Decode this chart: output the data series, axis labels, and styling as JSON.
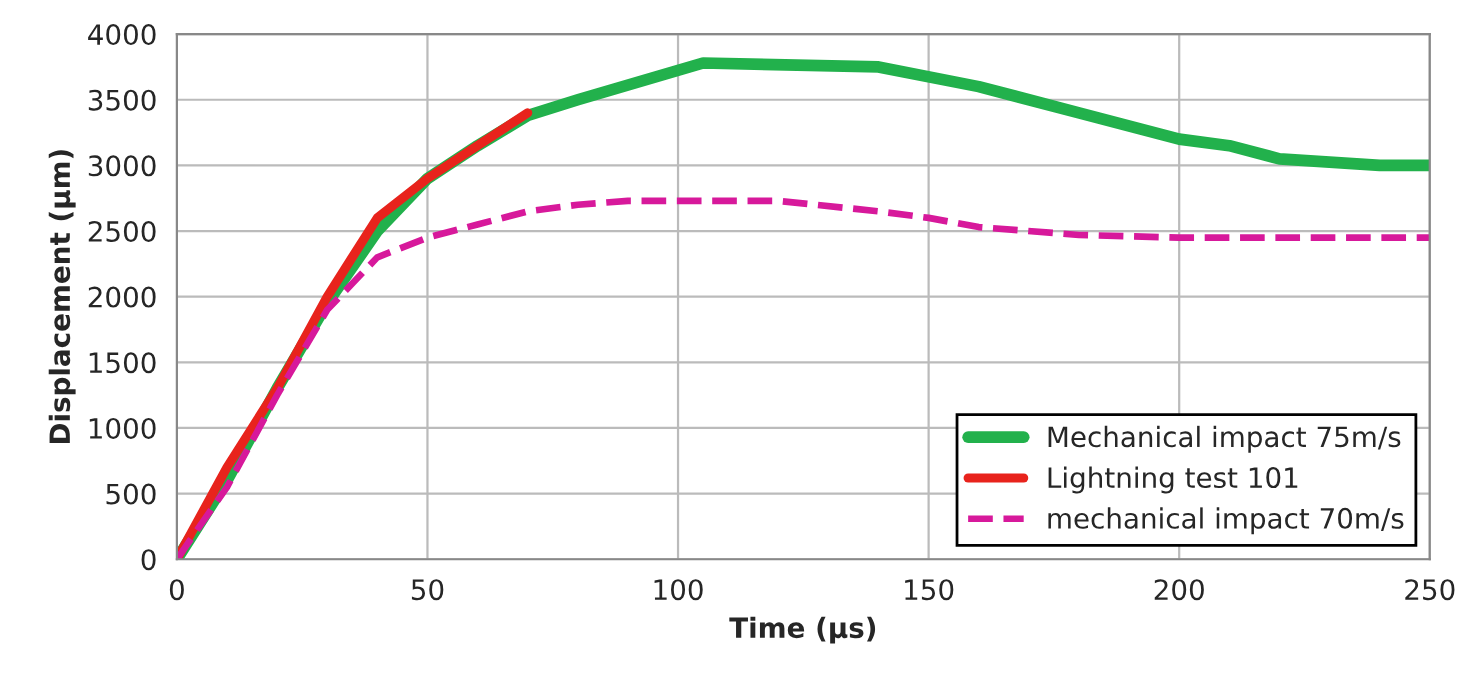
{
  "chart_data": {
    "type": "line",
    "xlabel": "Time (µs)",
    "ylabel": "Displacement (µm)",
    "xlim": [
      0,
      250
    ],
    "xticks": [
      0,
      50,
      100,
      150,
      200,
      250
    ],
    "ylim": [
      0,
      4000
    ],
    "yticks": [
      0,
      500,
      1000,
      1500,
      2000,
      2500,
      3000,
      3500,
      4000
    ],
    "grid": true,
    "legend": "bottom right",
    "marker": "none",
    "series": [
      {
        "name": "Mechanical impact 75m/s",
        "color": "#22b14c",
        "line_style": "solid",
        "x": [
          0,
          10,
          20,
          30,
          40,
          50,
          60,
          70,
          80,
          105,
          140,
          160,
          180,
          200,
          210,
          220,
          240,
          250
        ],
        "values": [
          0,
          600,
          1300,
          1950,
          2500,
          2900,
          3150,
          3380,
          3500,
          3780,
          3750,
          3600,
          3400,
          3200,
          3150,
          3050,
          3000,
          3000
        ]
      },
      {
        "name": "Lightning test 101",
        "color": "#e8231c",
        "line_style": "solid",
        "x": [
          0,
          10,
          20,
          30,
          35,
          40,
          50,
          60,
          70
        ],
        "values": [
          0,
          700,
          1300,
          2000,
          2300,
          2600,
          2900,
          3150,
          3400
        ]
      },
      {
        "name": "mechanical impact 70m/s",
        "color": "#d7199b",
        "line_style": "dashed",
        "x": [
          0,
          10,
          20,
          30,
          35,
          40,
          50,
          60,
          70,
          80,
          90,
          100,
          120,
          140,
          150,
          160,
          180,
          200,
          250
        ],
        "values": [
          0,
          550,
          1250,
          1900,
          2100,
          2300,
          2450,
          2550,
          2650,
          2700,
          2730,
          2730,
          2730,
          2650,
          2600,
          2530,
          2470,
          2450,
          2450
        ]
      }
    ]
  }
}
